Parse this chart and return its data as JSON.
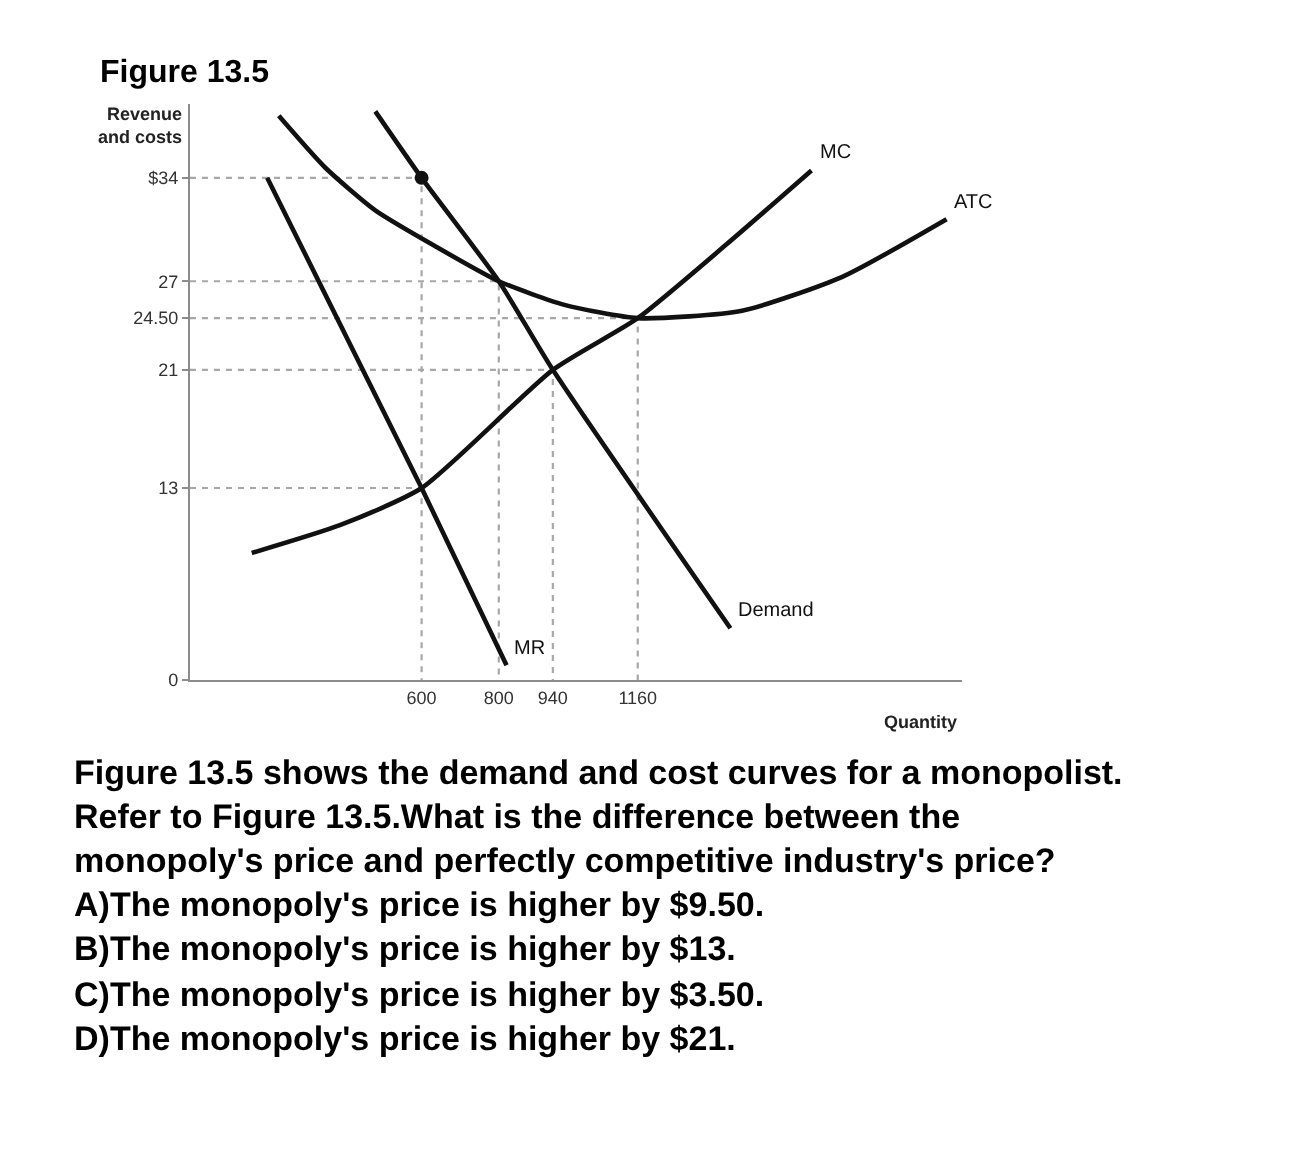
{
  "chart_data": {
    "type": "line",
    "title": "Figure 13.5",
    "ylabel": "Revenue\nand costs",
    "xlabel": "Quantity",
    "xlim": [
      0,
      2000
    ],
    "ylim": [
      0,
      39
    ],
    "xticks": [
      600,
      800,
      940,
      1160
    ],
    "yticks": [
      0,
      13,
      21,
      {
        "value": 24.5,
        "label": "24.50"
      },
      27,
      {
        "value": 34,
        "label": "$34"
      }
    ],
    "series": [
      {
        "x": [
          0,
          600,
          600
        ],
        "values": [
          34,
          34,
          0
        ],
        "color": "#a8a8a8",
        "line_style": "dotted"
      },
      {
        "x": [
          0,
          800,
          800
        ],
        "values": [
          27,
          27,
          0
        ],
        "color": "#a8a8a8",
        "line_style": "dotted"
      },
      {
        "x": [
          0,
          1160,
          1160
        ],
        "values": [
          24.5,
          24.5,
          0
        ],
        "color": "#a8a8a8",
        "line_style": "dotted"
      },
      {
        "x": [
          0,
          940,
          940
        ],
        "values": [
          21,
          21,
          0
        ],
        "color": "#a8a8a8",
        "line_style": "dotted"
      },
      {
        "x": [
          0,
          600
        ],
        "values": [
          13,
          13
        ],
        "color": "#a8a8a8",
        "line_style": "dotted"
      },
      {
        "name": "MR",
        "x": [
          200,
          600,
          820
        ],
        "values": [
          34,
          13,
          1
        ],
        "color": "#111111",
        "line_style": "solid"
      },
      {
        "name": "Demand",
        "x": [
          480,
          600,
          800,
          940,
          1400
        ],
        "values": [
          38.5,
          34,
          27,
          21,
          3.5
        ],
        "color": "#111111",
        "line_style": "solid"
      },
      {
        "name": "MC",
        "x": [
          160,
          390,
          600,
          940,
          1160,
          1390,
          1610
        ],
        "values": [
          8.6,
          10.5,
          13,
          21,
          24.5,
          29.5,
          34.5
        ],
        "color": "#111111",
        "line_style": "solid"
      },
      {
        "name": "ATC",
        "x": [
          230,
          350,
          480,
          640,
          800,
          970,
          1160,
          1430,
          1690,
          1960
        ],
        "values": [
          38.2,
          34.7,
          31.8,
          29.3,
          27,
          25.4,
          24.5,
          25,
          27.3,
          31.2
        ],
        "color": "#111111",
        "line_style": "solid"
      },
      {
        "type": "scatter",
        "x": [
          600
        ],
        "values": [
          34
        ],
        "color": "#111111",
        "marker": "circle"
      }
    ],
    "annotations": [
      "Figure 13.5 shows the demand and cost curves for a monopolist. Refer to Figure 13.5.What is the difference between the monopoly's price and perfectly competitive industry's price?",
      "A)The monopoly's price is higher by $9.50.",
      "B)The monopoly's price is higher by $13.",
      "C)The monopoly's price is higher by $3.50.",
      "D)The monopoly's price is higher by $21."
    ]
  }
}
